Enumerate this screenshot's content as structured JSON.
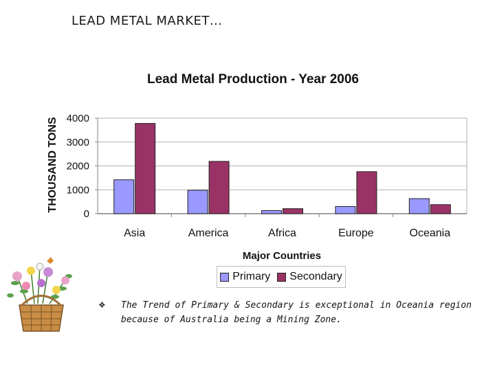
{
  "slide": {
    "title": "LEAD METAL MARKET…",
    "bullet_glyph": "❖",
    "note": "The Trend of Primary & Secondary is exceptional in Oceania region because of Australia being a Mining Zone."
  },
  "colors": {
    "primary": "#9999ff",
    "secondary": "#993366",
    "grid": "#b0b0b0",
    "axis": "#808080"
  },
  "chart_data": {
    "type": "bar",
    "title": "Lead Metal Production - Year 2006",
    "xlabel": "Major Countries",
    "ylabel": "THOUSAND TONS",
    "ylim": [
      0,
      4000
    ],
    "yticks": [
      0,
      1000,
      2000,
      3000,
      4000
    ],
    "categories": [
      "Asia",
      "America",
      "Africa",
      "Europe",
      "Oceania"
    ],
    "series": [
      {
        "name": "Primary",
        "values": [
          1420,
          980,
          130,
          300,
          630
        ]
      },
      {
        "name": "Secondary",
        "values": [
          3780,
          2190,
          210,
          1760,
          380
        ]
      }
    ],
    "legend": [
      "Primary",
      "Secondary"
    ],
    "legend_position": "bottom"
  }
}
